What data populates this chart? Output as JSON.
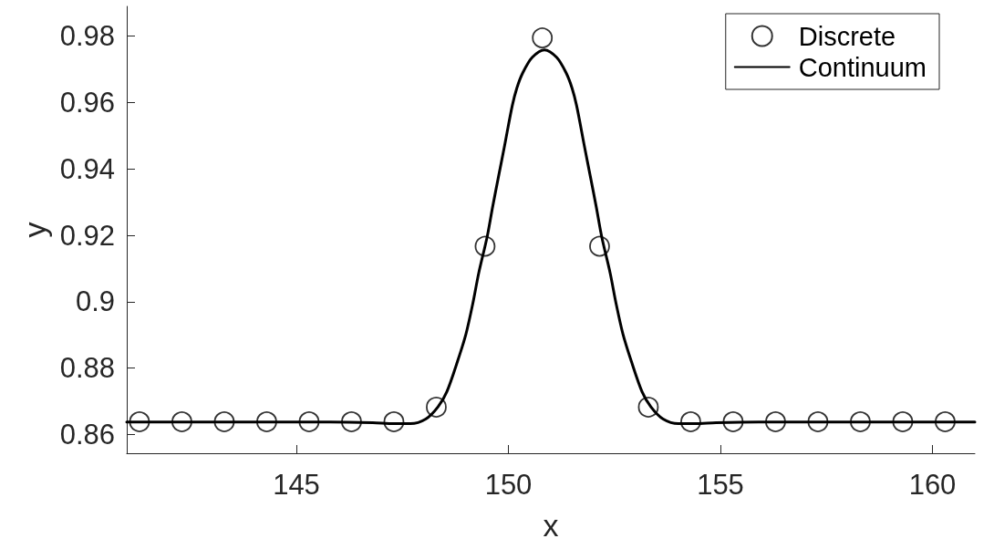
{
  "chart_data": {
    "type": "line",
    "xlabel": "x",
    "ylabel": "y",
    "xlim": [
      141,
      161
    ],
    "xticks": [
      145,
      150,
      155,
      160
    ],
    "ylim": [
      0.8543,
      0.989
    ],
    "yticks": [
      0.86,
      0.88,
      0.9,
      0.92,
      0.94,
      0.96,
      0.98
    ],
    "grid": false,
    "legend": "top right",
    "series": [
      {
        "name": "Discrete",
        "type": "scatter",
        "color": "#000000",
        "marker": "circle",
        "x": [
          141.3,
          142.3,
          143.3,
          144.3,
          145.3,
          146.3,
          147.3,
          148.3,
          149.45,
          150.8,
          152.15,
          153.3,
          154.3,
          155.3,
          156.3,
          157.3,
          158.3,
          159.3,
          160.3
        ],
        "values": [
          0.8638,
          0.8638,
          0.8638,
          0.8638,
          0.8638,
          0.8638,
          0.8638,
          0.8682,
          0.9167,
          0.9795,
          0.9167,
          0.8682,
          0.8638,
          0.8638,
          0.8638,
          0.8638,
          0.8638,
          0.8638,
          0.8638
        ]
      },
      {
        "name": "Continuum",
        "color": "#000000",
        "marker": "none",
        "line_style": "solid",
        "x": [
          141,
          145.8,
          146.8,
          147.3,
          147.69,
          148.05,
          148.34,
          148.55,
          148.8,
          149,
          149.16,
          149.3,
          149.5,
          149.63,
          149.77,
          149.91,
          150.09,
          150.2,
          150.34,
          150.56,
          150.85,
          151.14,
          151.36,
          151.5,
          151.61,
          151.79,
          151.93,
          152.07,
          152.2,
          152.4,
          152.54,
          152.7,
          152.9,
          153.15,
          153.36,
          153.65,
          154.01,
          154.4,
          154.9,
          155.9,
          161
        ],
        "values": [
          0.8637,
          0.8637,
          0.8635,
          0.8632,
          0.8632,
          0.8646,
          0.8683,
          0.8729,
          0.882,
          0.8903,
          0.8994,
          0.9086,
          0.9196,
          0.9287,
          0.9379,
          0.947,
          0.959,
          0.9644,
          0.969,
          0.9736,
          0.9759,
          0.9736,
          0.969,
          0.9644,
          0.959,
          0.947,
          0.9379,
          0.9287,
          0.9196,
          0.9086,
          0.8994,
          0.8903,
          0.882,
          0.8729,
          0.8683,
          0.8646,
          0.8632,
          0.8632,
          0.8635,
          0.8637,
          0.8637
        ]
      }
    ]
  }
}
